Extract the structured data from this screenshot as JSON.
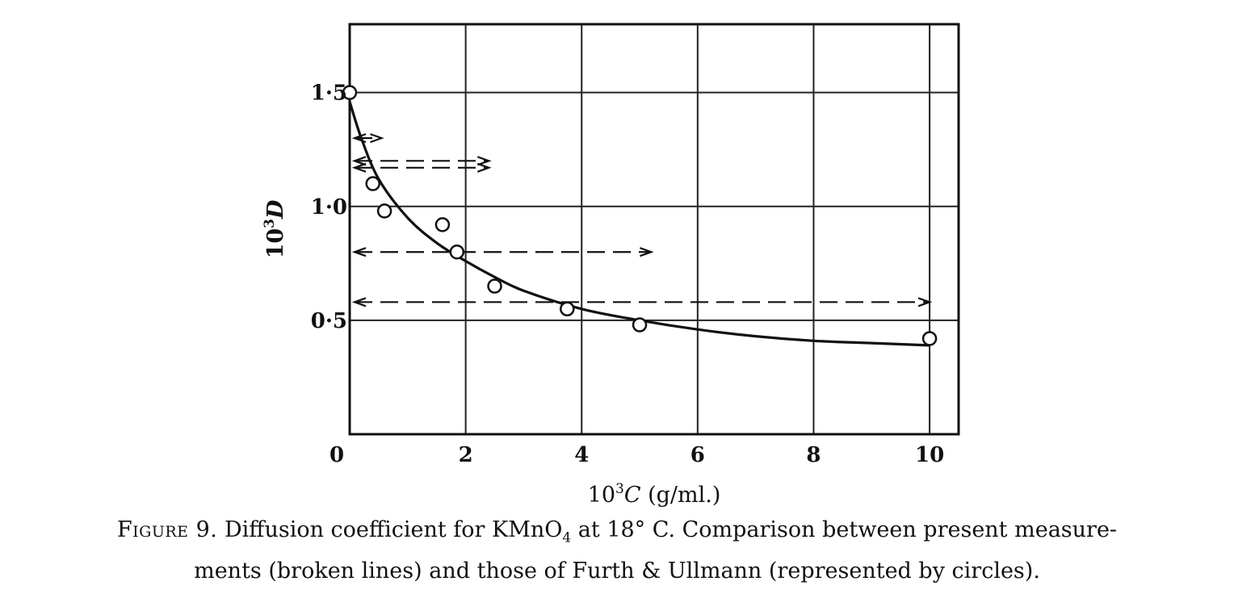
{
  "chart_data": {
    "type": "scatter",
    "xlabel": {
      "base": "10",
      "exp": "3",
      "var": "C",
      "unit": " (g/ml.)"
    },
    "ylabel": {
      "base": "10",
      "exp": "3",
      "var": "D"
    },
    "xlim": [
      0,
      10.5
    ],
    "ylim": [
      0,
      1.8
    ],
    "x_ticks": [
      {
        "value": 0,
        "label": "0"
      },
      {
        "value": 2,
        "label": "2"
      },
      {
        "value": 4,
        "label": "4"
      },
      {
        "value": 6,
        "label": "6"
      },
      {
        "value": 8,
        "label": "8"
      },
      {
        "value": 10,
        "label": "10"
      }
    ],
    "y_ticks": [
      {
        "value": 0.5,
        "label": "0·5"
      },
      {
        "value": 1.0,
        "label": "1·0"
      },
      {
        "value": 1.5,
        "label": "1·5"
      }
    ],
    "grid": true,
    "series": [
      {
        "kind": "circles",
        "points": [
          {
            "x": 0.0,
            "y": 1.5
          },
          {
            "x": 0.4,
            "y": 1.1
          },
          {
            "x": 0.6,
            "y": 0.98
          },
          {
            "x": 1.6,
            "y": 0.92
          },
          {
            "x": 1.85,
            "y": 0.8
          },
          {
            "x": 2.5,
            "y": 0.65
          },
          {
            "x": 3.75,
            "y": 0.55
          },
          {
            "x": 5.0,
            "y": 0.48
          },
          {
            "x": 10.0,
            "y": 0.42
          }
        ]
      },
      {
        "kind": "fitted-curve",
        "points": [
          {
            "x": 0.0,
            "y": 1.46
          },
          {
            "x": 0.2,
            "y": 1.3
          },
          {
            "x": 0.5,
            "y": 1.12
          },
          {
            "x": 1.0,
            "y": 0.95
          },
          {
            "x": 1.5,
            "y": 0.84
          },
          {
            "x": 2.0,
            "y": 0.76
          },
          {
            "x": 2.5,
            "y": 0.69
          },
          {
            "x": 3.0,
            "y": 0.63
          },
          {
            "x": 4.0,
            "y": 0.55
          },
          {
            "x": 5.0,
            "y": 0.5
          },
          {
            "x": 6.0,
            "y": 0.46
          },
          {
            "x": 7.0,
            "y": 0.43
          },
          {
            "x": 8.0,
            "y": 0.41
          },
          {
            "x": 9.0,
            "y": 0.4
          },
          {
            "x": 10.0,
            "y": 0.39
          }
        ]
      },
      {
        "kind": "broken-lines",
        "ranges": [
          {
            "y": 1.3,
            "x_from": 0.0,
            "x_to": 0.55
          },
          {
            "y": 1.2,
            "x_from": 0.0,
            "x_to": 2.4
          },
          {
            "y": 1.17,
            "x_from": 0.0,
            "x_to": 2.4
          },
          {
            "y": 0.8,
            "x_from": 0.0,
            "x_to": 5.2
          },
          {
            "y": 0.58,
            "x_from": 0.0,
            "x_to": 10.0
          }
        ]
      }
    ],
    "caption": {
      "label": "Figure 9.",
      "line1_pre": "Diffusion coefficient for KMnO",
      "line1_sub": "4",
      "line1_post": " at 18° C.  Comparison between present measure-",
      "line2": "ments (broken lines) and those of Furth & Ullmann (represented by circles)."
    }
  }
}
